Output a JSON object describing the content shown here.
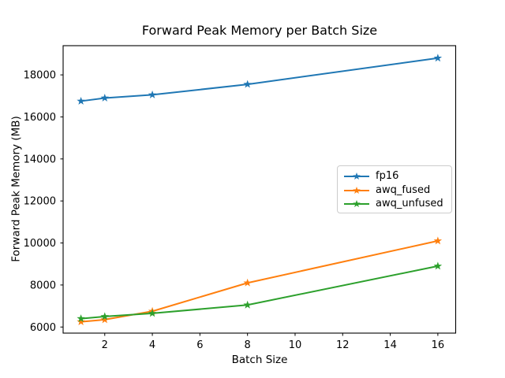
{
  "chart_data": {
    "type": "line",
    "title": "Forward Peak Memory per Batch Size",
    "xlabel": "Batch Size",
    "ylabel": "Forward Peak Memory (MB)",
    "x": [
      1,
      2,
      4,
      8,
      16
    ],
    "series": [
      {
        "name": "fp16",
        "color": "#1f77b4",
        "values": [
          16750,
          16900,
          17050,
          17550,
          18800
        ]
      },
      {
        "name": "awq_fused",
        "color": "#ff7f0e",
        "values": [
          6250,
          6350,
          6750,
          8100,
          10100
        ]
      },
      {
        "name": "awq_unfused",
        "color": "#2ca02c",
        "values": [
          6400,
          6500,
          6650,
          7050,
          8900
        ]
      }
    ],
    "xticks": [
      2,
      4,
      6,
      8,
      10,
      12,
      14,
      16
    ],
    "yticks": [
      6000,
      8000,
      10000,
      12000,
      14000,
      16000,
      18000
    ],
    "xlim": [
      0.25,
      16.75
    ],
    "ylim": [
      5710,
      19390
    ],
    "marker": "star",
    "legend_position": "center right",
    "grid": false,
    "background": "#ffffff",
    "axis_color": "#000000"
  }
}
